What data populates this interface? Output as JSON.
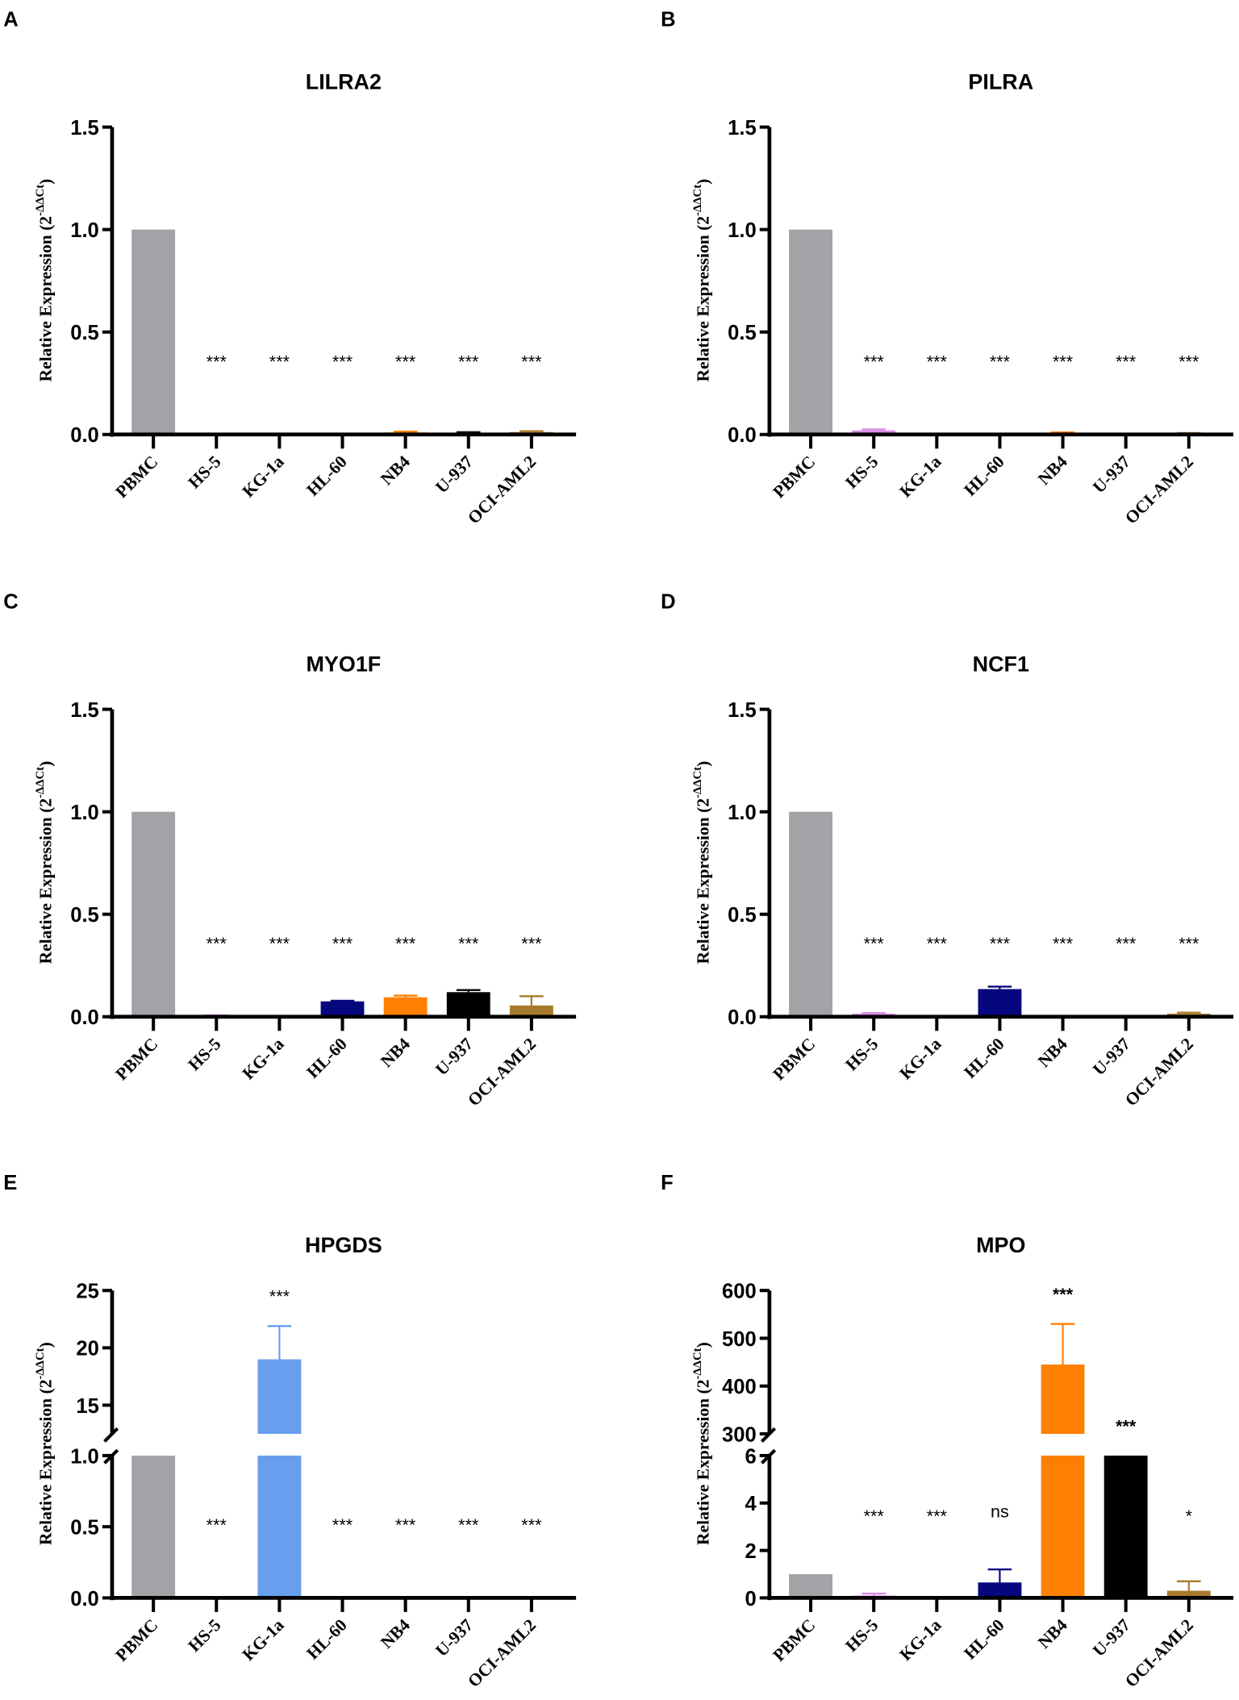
{
  "chart_data": [
    {
      "type": "bar",
      "panel": "A",
      "title": "LILRA2",
      "ylabel": "Relative  Expression (2",
      "ylabel_sup": "-ΔΔCt",
      "ylabel_end": ")",
      "categories": [
        "PBMC",
        "HS-5",
        "KG-1a",
        "HL-60",
        "NB4",
        "U-937",
        "OCI-AML2"
      ],
      "values": [
        1.0,
        0.002,
        0.001,
        0.001,
        0.01,
        0.008,
        0.012
      ],
      "errors": [
        0,
        0,
        0,
        0,
        0.004,
        0.003,
        0.004
      ],
      "significance": [
        "",
        "***",
        "***",
        "***",
        "***",
        "***",
        "***"
      ],
      "ylim": [
        0,
        1.5
      ],
      "yticks": [
        "0.0",
        "0.5",
        "1.0",
        "1.5"
      ],
      "ytick_values": [
        0,
        0.5,
        1.0,
        1.5
      ]
    },
    {
      "type": "bar",
      "panel": "B",
      "title": "PILRA",
      "ylabel": "Relative  Expression (2",
      "ylabel_sup": "-ΔΔCt",
      "ylabel_end": ")",
      "categories": [
        "PBMC",
        "HS-5",
        "KG-1a",
        "HL-60",
        "NB4",
        "U-937",
        "OCI-AML2"
      ],
      "values": [
        1.0,
        0.02,
        0.002,
        0.002,
        0.008,
        0.002,
        0.005
      ],
      "errors": [
        0,
        0.005,
        0,
        0,
        0.002,
        0,
        0.002
      ],
      "significance": [
        "",
        "***",
        "***",
        "***",
        "***",
        "***",
        "***"
      ],
      "ylim": [
        0,
        1.5
      ],
      "yticks": [
        "0.0",
        "0.5",
        "1.0",
        "1.5"
      ],
      "ytick_values": [
        0,
        0.5,
        1.0,
        1.5
      ]
    },
    {
      "type": "bar",
      "panel": "C",
      "title": "MYO1F",
      "ylabel": "Relative  Expression (2",
      "ylabel_sup": "-ΔΔCt",
      "ylabel_end": ")",
      "categories": [
        "PBMC",
        "HS-5",
        "KG-1a",
        "HL-60",
        "NB4",
        "U-937",
        "OCI-AML2"
      ],
      "values": [
        1.0,
        0.005,
        0.003,
        0.075,
        0.095,
        0.12,
        0.055
      ],
      "errors": [
        0,
        0.002,
        0.001,
        0.003,
        0.008,
        0.01,
        0.045
      ],
      "significance": [
        "",
        "***",
        "***",
        "***",
        "***",
        "***",
        "***"
      ],
      "ylim": [
        0,
        1.5
      ],
      "yticks": [
        "0.0",
        "0.5",
        "1.0",
        "1.5"
      ],
      "ytick_values": [
        0,
        0.5,
        1.0,
        1.5
      ]
    },
    {
      "type": "bar",
      "panel": "D",
      "title": "NCF1",
      "ylabel": "Relative  Expression (2",
      "ylabel_sup": "-ΔΔCt",
      "ylabel_end": ")",
      "categories": [
        "PBMC",
        "HS-5",
        "KG-1a",
        "HL-60",
        "NB4",
        "U-937",
        "OCI-AML2"
      ],
      "values": [
        1.0,
        0.015,
        0.002,
        0.135,
        0.003,
        0.002,
        0.015
      ],
      "errors": [
        0,
        0.003,
        0,
        0.012,
        0,
        0,
        0.005
      ],
      "significance": [
        "",
        "***",
        "***",
        "***",
        "***",
        "***",
        "***"
      ],
      "ylim": [
        0,
        1.5
      ],
      "yticks": [
        "0.0",
        "0.5",
        "1.0",
        "1.5"
      ],
      "ytick_values": [
        0,
        0.5,
        1.0,
        1.5
      ]
    },
    {
      "type": "bar",
      "panel": "E",
      "title": "HPGDS",
      "ylabel": "Relative  Expression (2",
      "ylabel_sup": "-ΔΔCt",
      "ylabel_end": ")",
      "categories": [
        "PBMC",
        "HS-5",
        "KG-1a",
        "HL-60",
        "NB4",
        "U-937",
        "OCI-AML2"
      ],
      "values": [
        1.0,
        0.005,
        19.0,
        0.002,
        0.005,
        0.002,
        0.002
      ],
      "errors": [
        0,
        0,
        2.9,
        0,
        0,
        0,
        0
      ],
      "significance": [
        "",
        "***",
        "***",
        "***",
        "***",
        "***",
        "***"
      ],
      "broken_axis": true,
      "ylim_lower": [
        0,
        1.0
      ],
      "yticks_lower": [
        "0.0",
        "0.5",
        "1.0"
      ],
      "ytick_values_lower": [
        0,
        0.5,
        1.0
      ],
      "ylim_upper": [
        12.5,
        25
      ],
      "yticks_upper": [
        "15",
        "20",
        "25"
      ],
      "ytick_values_upper": [
        15,
        20,
        25
      ]
    },
    {
      "type": "bar",
      "panel": "F",
      "title": "MPO",
      "ylabel": "Relative  Expression (2",
      "ylabel_sup": "-ΔΔCt",
      "ylabel_end": ")",
      "categories": [
        "PBMC",
        "HS-5",
        "KG-1a",
        "HL-60",
        "NB4",
        "U-937",
        "OCI-AML2"
      ],
      "values": [
        1.0,
        0.1,
        0.05,
        0.65,
        445,
        6,
        0.3
      ],
      "errors": [
        0,
        0.08,
        0,
        0.55,
        85,
        0,
        0.4
      ],
      "significance": [
        "",
        "***",
        "***",
        "ns",
        "***",
        "***",
        "*"
      ],
      "broken_axis": true,
      "ylim_lower": [
        0,
        6
      ],
      "yticks_lower": [
        "0",
        "2",
        "4",
        "6"
      ],
      "ytick_values_lower": [
        0,
        2,
        4,
        6
      ],
      "ylim_upper": [
        300,
        600
      ],
      "yticks_upper": [
        "300",
        "400",
        "500",
        "600"
      ],
      "ytick_values_upper": [
        300,
        400,
        500,
        600
      ]
    }
  ],
  "colors": {
    "PBMC": "#a3a2a7",
    "HS-5": "#d88be6",
    "KG-1a": "#679eee",
    "HL-60": "#06067e",
    "NB4": "#ff8000",
    "U-937": "#000000",
    "OCI-AML2": "#a87a2c",
    "axis": "#000000"
  }
}
